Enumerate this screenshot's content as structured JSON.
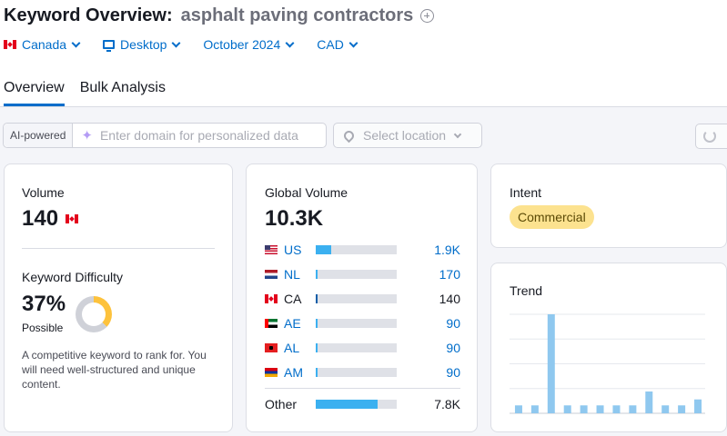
{
  "header": {
    "title": "Keyword Overview:",
    "keyword": "asphalt paving contractors"
  },
  "filters": {
    "country": "Canada",
    "device": "Desktop",
    "date": "October 2024",
    "currency": "CAD"
  },
  "tabs": [
    {
      "label": "Overview",
      "active": true
    },
    {
      "label": "Bulk Analysis",
      "active": false
    }
  ],
  "toolbar": {
    "ai_label": "AI-powered",
    "domain_placeholder": "Enter domain for personalized data",
    "location_placeholder": "Select location"
  },
  "volume": {
    "label": "Volume",
    "value": "140"
  },
  "difficulty": {
    "label": "Keyword Difficulty",
    "value": "37%",
    "percent": 37,
    "level": "Possible",
    "description": "A competitive keyword to rank for. You will need well-structured and unique content.",
    "colors": {
      "filled": "#fdc23c",
      "empty": "#cfd1d8"
    }
  },
  "global_volume": {
    "label": "Global Volume",
    "value": "10.3K",
    "countries": [
      {
        "code": "US",
        "value": "1.9K",
        "share": 0.19,
        "link": true
      },
      {
        "code": "NL",
        "value": "170",
        "share": 0.02,
        "link": true
      },
      {
        "code": "CA",
        "value": "140",
        "share": 0.02,
        "link": false
      },
      {
        "code": "AE",
        "value": "90",
        "share": 0.01,
        "link": true
      },
      {
        "code": "AL",
        "value": "90",
        "share": 0.01,
        "link": true
      },
      {
        "code": "AM",
        "value": "90",
        "share": 0.01,
        "link": true
      }
    ],
    "other": {
      "label": "Other",
      "value": "7.8K",
      "share": 0.76
    }
  },
  "intent": {
    "label": "Intent",
    "value": "Commercial"
  },
  "trend": {
    "label": "Trend"
  },
  "chart_data": {
    "type": "bar",
    "title": "Trend",
    "values": [
      0.08,
      0.08,
      1.0,
      0.08,
      0.08,
      0.08,
      0.08,
      0.08,
      0.22,
      0.08,
      0.08,
      0.14
    ],
    "ylim": [
      0,
      1
    ],
    "grid": true,
    "color": "#8fc8ef"
  },
  "colors": {
    "accent": "#006dca",
    "bar": "#3bb0f0",
    "intent_badge": "#fce28f"
  }
}
